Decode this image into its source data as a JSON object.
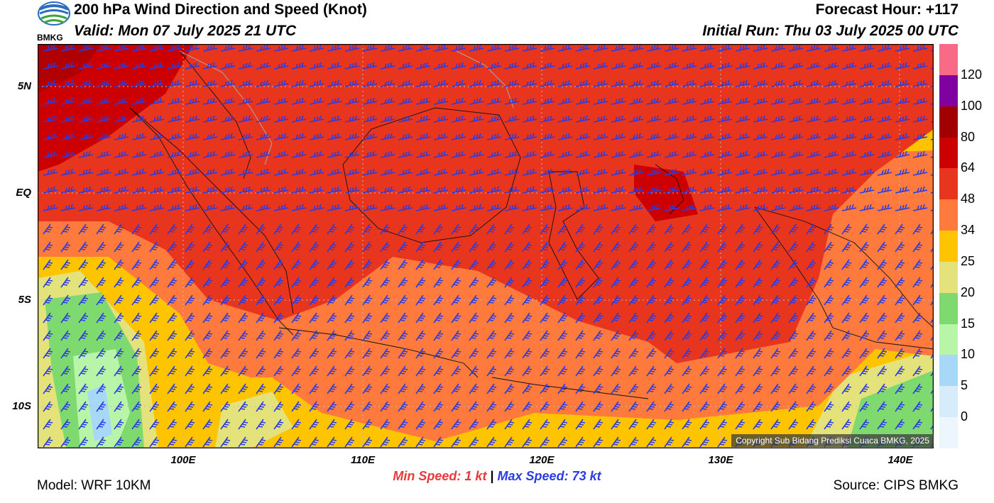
{
  "header": {
    "title": "200 hPa Wind Direction and Speed (Knot)",
    "valid": "Valid: Mon 07 July 2025 21 UTC",
    "forecast_hour": "Forecast Hour: +117",
    "initial_run": "Initial Run: Thu 03 July 2025 00 UTC"
  },
  "logo": {
    "text": "BMKG"
  },
  "map": {
    "lat_labels": [
      "5N",
      "EQ",
      "5S",
      "10S"
    ],
    "lon_labels": [
      "100E",
      "110E",
      "120E",
      "130E",
      "140E"
    ],
    "copyright": "Copyright Sub Bidang Prediksi Cuaca BMKG, 2025"
  },
  "colorbar": {
    "labels": [
      "120",
      "100",
      "80",
      "64",
      "48",
      "34",
      "25",
      "20",
      "15",
      "10",
      "5",
      "0"
    ],
    "colors": [
      "#f96a86",
      "#8000a0",
      "#a00000",
      "#cc0000",
      "#e8351e",
      "#ff7a3c",
      "#ffc400",
      "#e4e27a",
      "#7ed96e",
      "#b8f5a8",
      "#a8d8f8",
      "#d6ecfb",
      "#eef6fd"
    ]
  },
  "footer": {
    "min_label": "Min Speed:",
    "min_value": "1 kt",
    "separator": "|",
    "max_label": "Max Speed:",
    "max_value": "73 kt",
    "model": "Model: WRF 10KM",
    "source": "Source: CIPS BMKG"
  }
}
